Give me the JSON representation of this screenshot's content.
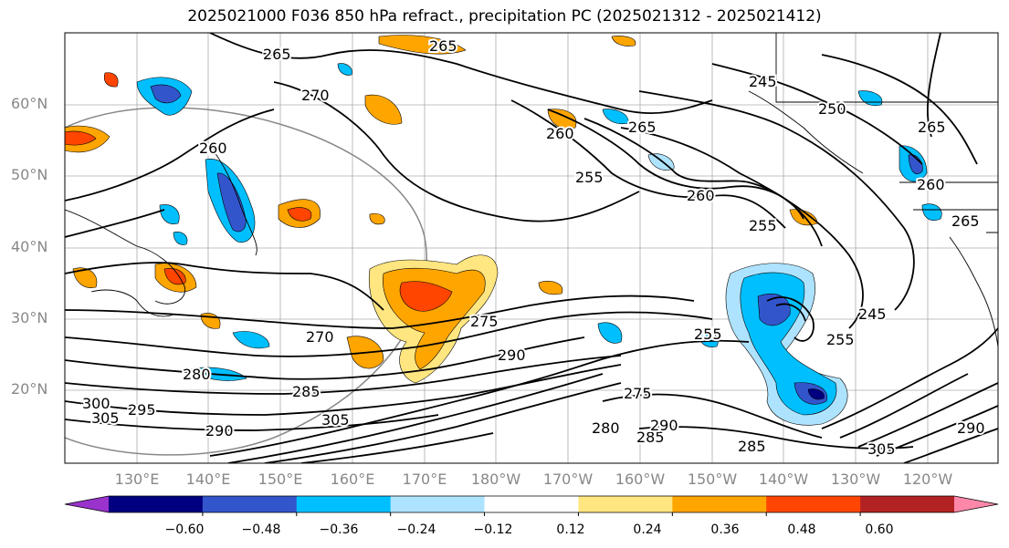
{
  "title": "2025021000 F036 850 hPa refract., precipitation PC (2025021312 - 2025021412)",
  "lat_labels": [
    "60°N",
    "50°N",
    "40°N",
    "30°N",
    "20°N"
  ],
  "lon_labels": [
    "130°E",
    "140°E",
    "150°E",
    "160°E",
    "170°E",
    "180°W",
    "170°W",
    "160°W",
    "150°W",
    "140°W",
    "130°W",
    "120°W"
  ],
  "colorbar": {
    "ticks": [
      "−0.60",
      "−0.48",
      "−0.36",
      "−0.24",
      "−0.12",
      "0.12",
      "0.24",
      "0.36",
      "0.48",
      "0.60"
    ],
    "colors": [
      "#9933cc",
      "#000080",
      "#3355cc",
      "#00bfff",
      "#aee3ff",
      "#ffffff",
      "#ffe680",
      "#ffa500",
      "#ff4500",
      "#b22222",
      "#ff88aa"
    ]
  },
  "contour_labels": [
    {
      "text": "265"
    },
    {
      "text": "265"
    },
    {
      "text": "270"
    },
    {
      "text": "260"
    },
    {
      "text": "255"
    },
    {
      "text": "260"
    },
    {
      "text": "265"
    },
    {
      "text": "245"
    },
    {
      "text": "250"
    },
    {
      "text": "265"
    },
    {
      "text": "260"
    },
    {
      "text": "265"
    },
    {
      "text": "270"
    },
    {
      "text": "275"
    },
    {
      "text": "280"
    },
    {
      "text": "285"
    },
    {
      "text": "290"
    },
    {
      "text": "295"
    },
    {
      "text": "300"
    },
    {
      "text": "305"
    },
    {
      "text": "305"
    },
    {
      "text": "290"
    },
    {
      "text": "275"
    },
    {
      "text": "280"
    },
    {
      "text": "285"
    },
    {
      "text": "290"
    },
    {
      "text": "255"
    },
    {
      "text": "255"
    },
    {
      "text": "245"
    },
    {
      "text": "285"
    },
    {
      "text": "305"
    },
    {
      "text": "290"
    },
    {
      "text": "260"
    },
    {
      "text": "255"
    }
  ]
}
